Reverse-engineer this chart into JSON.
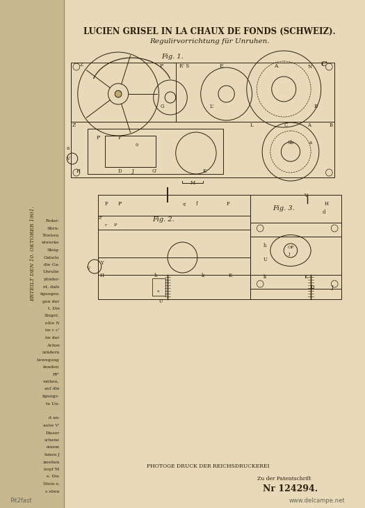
{
  "bg_color": "#e8d9b8",
  "left_strip_color": "#c8b890",
  "title_line1": "LUCIEN GRISEL IN LA CHAUX DE FONDS (SCHWEIZ).",
  "title_line2": "Regulirvorrichtung für Unruhen.",
  "fig1_label": "Fig. 1.",
  "fig2_label": "Fig. 2.",
  "fig3_label": "Fig. 3.",
  "bottom_text1": "PHOTOGE DRUCK DER REICHSDRUCKEREI",
  "bottom_text2": "Zu der Patentschrift",
  "patent_number": "Nr 124294.",
  "watermark_left": "Pit2fast",
  "watermark_right": "www.delcampe.net",
  "side_text": "ERTEILT DEN 10. OKTOBER 1901.",
  "drawing_color": "#2a2010",
  "line_width": 0.7
}
